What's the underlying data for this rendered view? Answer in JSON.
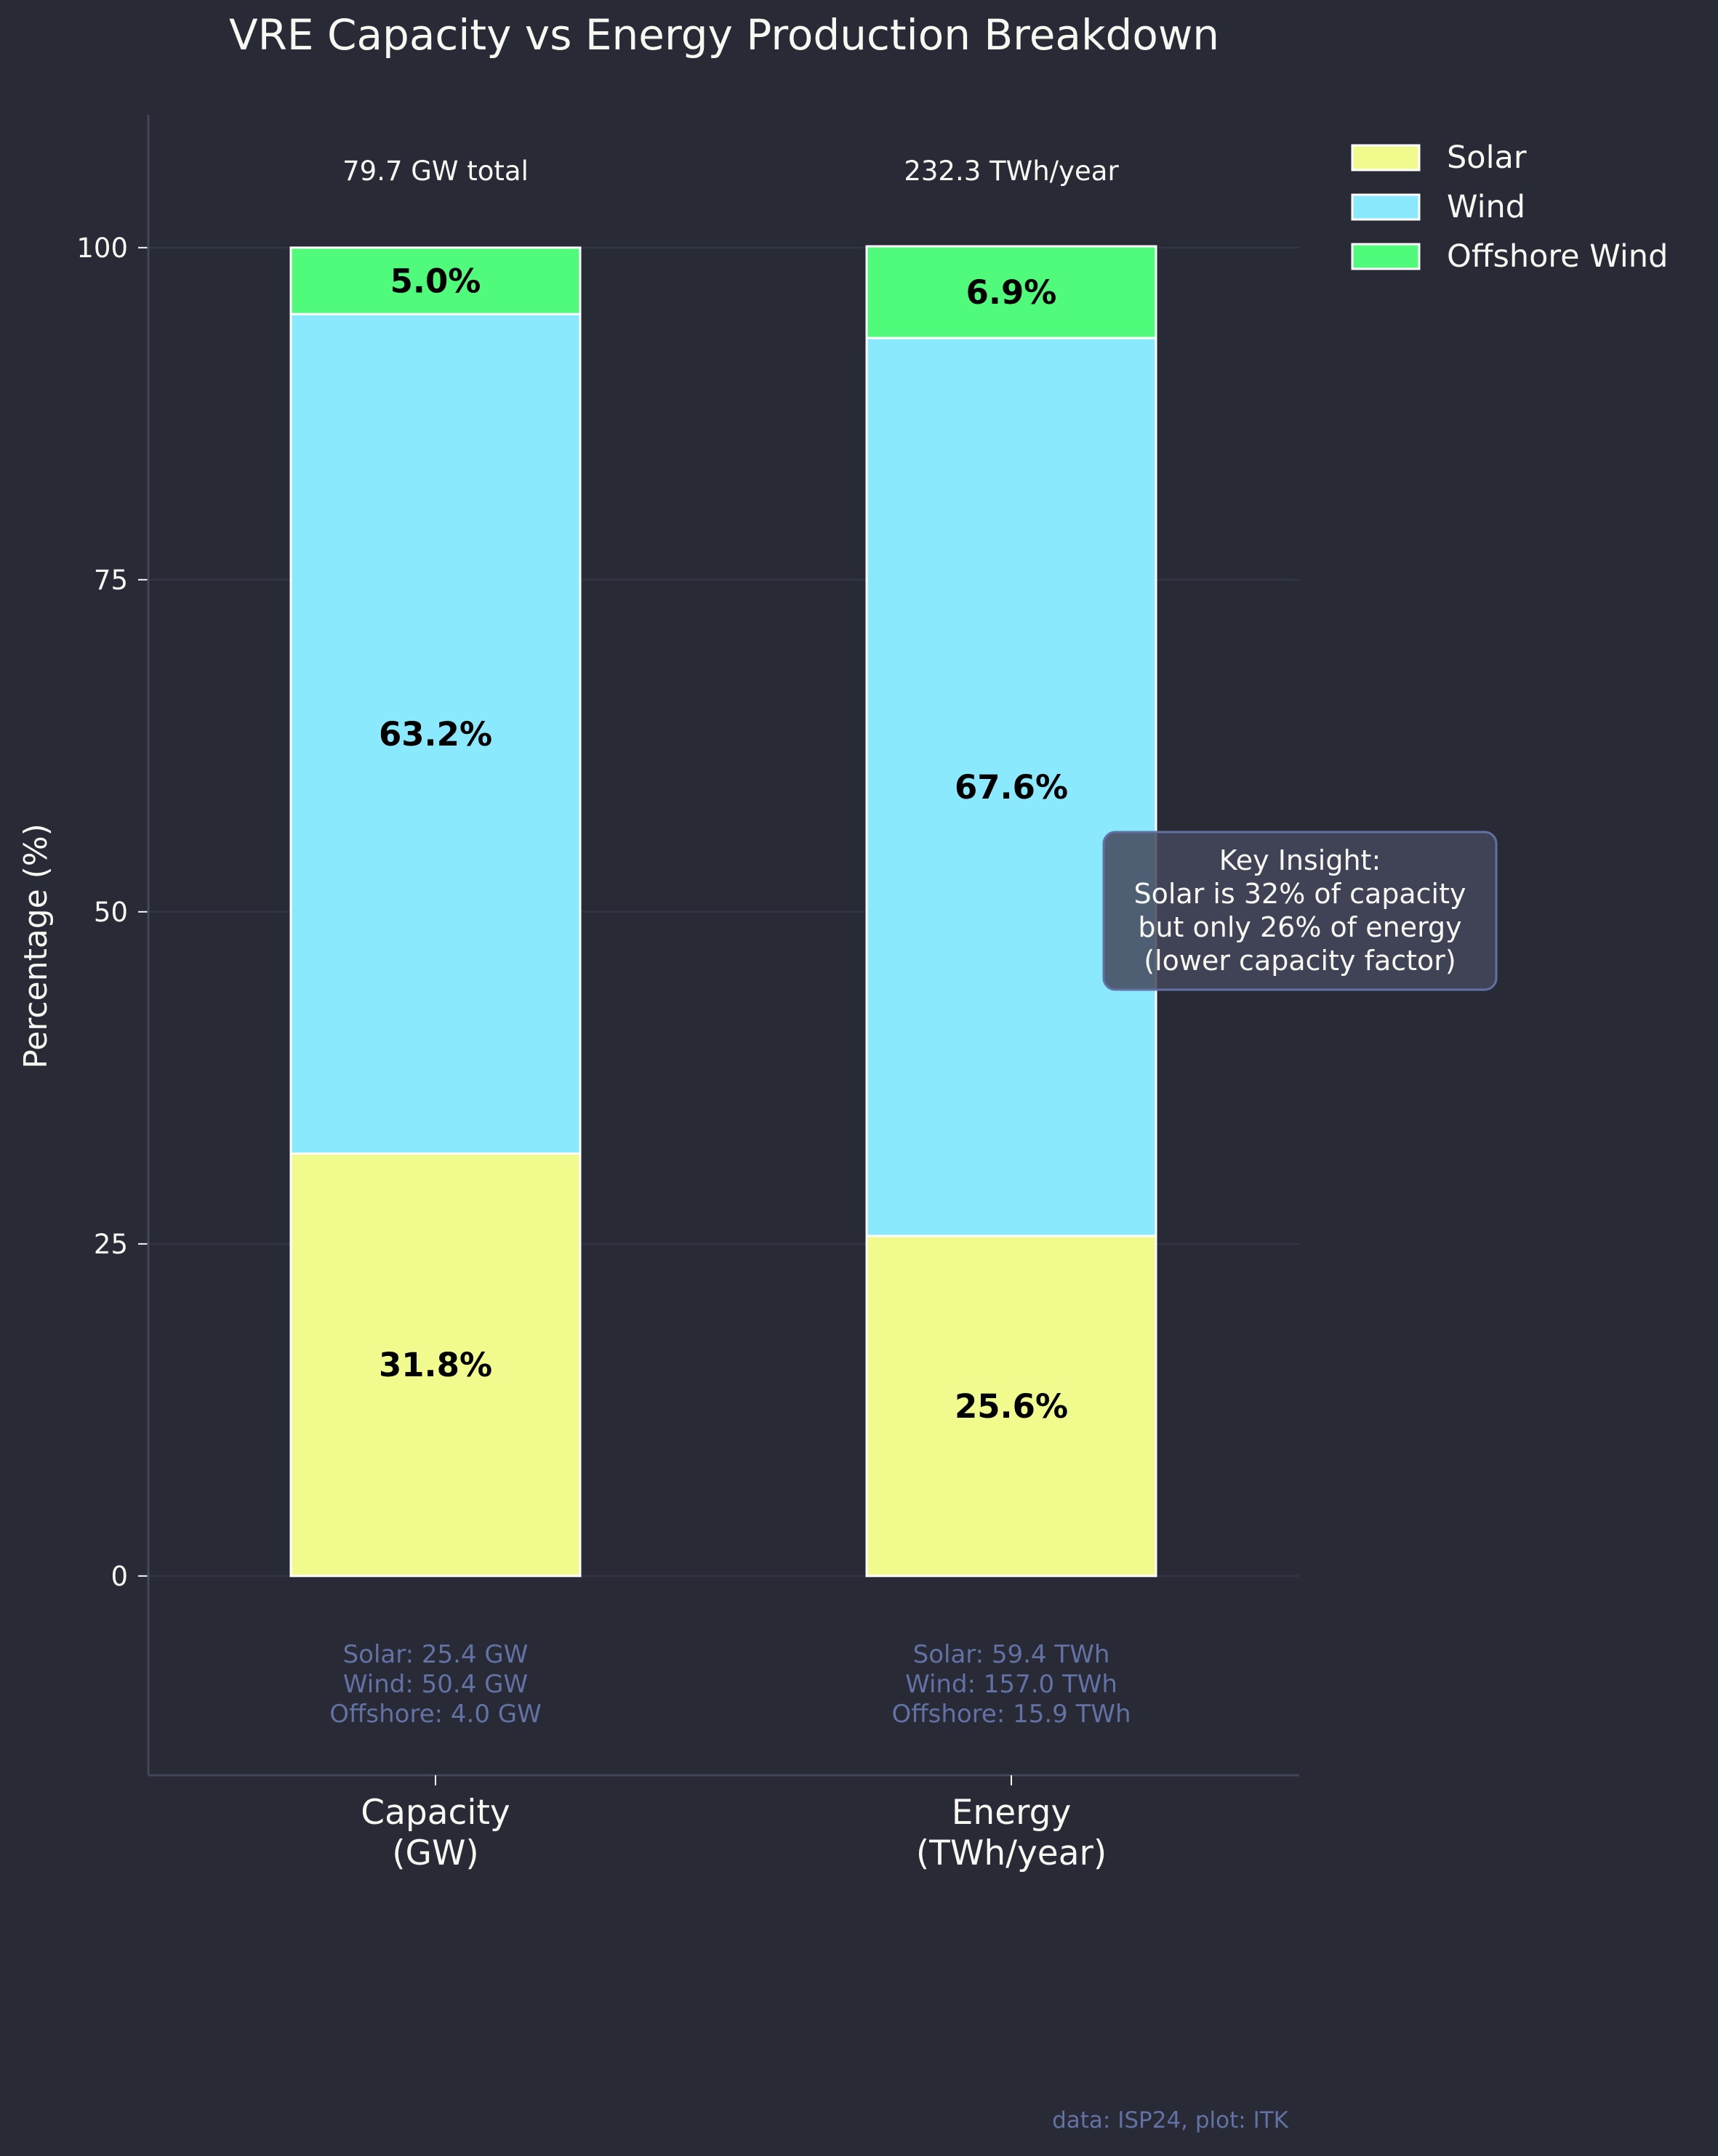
{
  "colors": {
    "background": "#282a36",
    "text": "#f8f8f2",
    "muted": "#6272a4",
    "grid": "#343746",
    "axis": "#44475a",
    "bar_edge": "#ffffff",
    "annotation_box": "#44475a",
    "annotation_border": "#6272a4"
  },
  "chart_data": {
    "type": "bar",
    "stacked": true,
    "title": "VRE Capacity vs Energy Production Breakdown",
    "xlabel": "",
    "ylabel": "Percentage (%)",
    "ylim": [
      -15,
      110
    ],
    "yticks": [
      0,
      25,
      50,
      75,
      100
    ],
    "grid": true,
    "legend_position": "top-right, outside plot",
    "categories": [
      "Capacity\n(GW)",
      "Energy\n(TWh/year)"
    ],
    "category_lines": [
      [
        "Capacity",
        "(GW)"
      ],
      [
        "Energy",
        "(TWh/year)"
      ]
    ],
    "series": [
      {
        "name": "Solar",
        "color": "#f1fa8c",
        "values": [
          31.8,
          25.6
        ],
        "labels": [
          "31.8%",
          "25.6%"
        ]
      },
      {
        "name": "Wind",
        "color": "#8be9fd",
        "values": [
          63.2,
          67.6
        ],
        "labels": [
          "63.2%",
          "67.6%"
        ]
      },
      {
        "name": "Offshore Wind",
        "color": "#50fa7b",
        "values": [
          5.0,
          6.9
        ],
        "labels": [
          "5.0%",
          "6.9%"
        ]
      }
    ],
    "totals": [
      "79.7 GW total",
      "232.3 TWh/year"
    ],
    "breakdowns": [
      [
        "Solar: 25.4 GW",
        "Wind: 50.4 GW",
        "Offshore: 4.0 GW"
      ],
      [
        "Solar: 59.4 TWh",
        "Wind: 157.0 TWh",
        "Offshore: 15.9 TWh"
      ]
    ],
    "annotation": {
      "lines": [
        "Key Insight:",
        "Solar is 32% of capacity",
        "but only 26% of energy",
        "(lower capacity factor)"
      ]
    },
    "footer": "data: ISP24, plot: ITK"
  }
}
